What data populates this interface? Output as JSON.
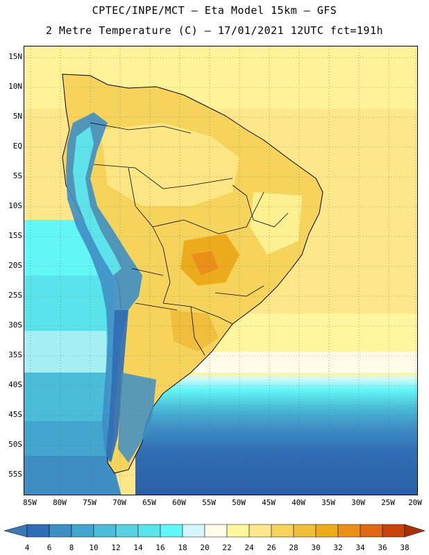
{
  "header": {
    "line1": "CPTEC/INPE/MCT –  Eta Model 15km – GFS",
    "line2": "2 Metre Temperature (C) – 17/01/2021 12UTC fct=191h"
  },
  "axes": {
    "lat_labels": [
      "15N",
      "10N",
      "5N",
      "EQ",
      "5S",
      "10S",
      "15S",
      "20S",
      "25S",
      "30S",
      "35S",
      "40S",
      "45S",
      "50S",
      "55S"
    ],
    "lon_labels": [
      "85W",
      "80W",
      "75W",
      "70W",
      "65W",
      "60W",
      "55W",
      "50W",
      "45W",
      "40W",
      "35W",
      "30W",
      "25W",
      "20W"
    ]
  },
  "colorbar": {
    "levels": [
      "4",
      "6",
      "8",
      "10",
      "12",
      "14",
      "16",
      "18",
      "20",
      "22",
      "24",
      "26",
      "28",
      "30",
      "32",
      "34",
      "36",
      "38"
    ],
    "colors": [
      "#3a78b8",
      "#2f6db5",
      "#3e8ec4",
      "#42a6cf",
      "#4cbdd8",
      "#58d2e0",
      "#5ae3ea",
      "#63f6f6",
      "#d4f6fa",
      "#fffbe8",
      "#fff69d",
      "#fde78a",
      "#f6d45c",
      "#f0be3d",
      "#ecab1d",
      "#ec8f1a",
      "#e16812",
      "#c8430d",
      "#a83005"
    ],
    "min_color": "#3a78b8",
    "max_color": "#a83005"
  }
}
